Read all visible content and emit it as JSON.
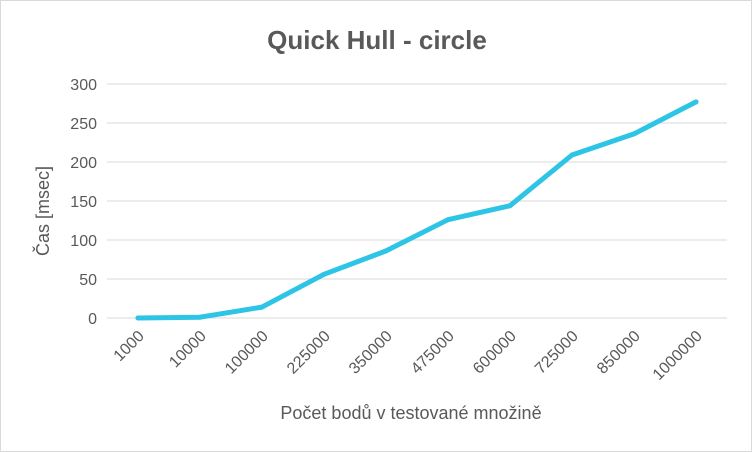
{
  "chart_data": {
    "type": "line",
    "title": "Quick Hull - circle",
    "xlabel": "Počet bodů v testované množině",
    "ylabel": "Čas [msec]",
    "categories": [
      "1000",
      "10000",
      "100000",
      "225000",
      "350000",
      "475000",
      "600000",
      "725000",
      "850000",
      "1000000"
    ],
    "series": [
      {
        "values": [
          0,
          1,
          14,
          56,
          86,
          126,
          144,
          209,
          236,
          277
        ],
        "color": "#2ec4e6"
      }
    ],
    "ylim": [
      0,
      300
    ],
    "yticks": [
      0,
      50,
      100,
      150,
      200,
      250,
      300
    ],
    "grid": true,
    "legend": "none"
  }
}
